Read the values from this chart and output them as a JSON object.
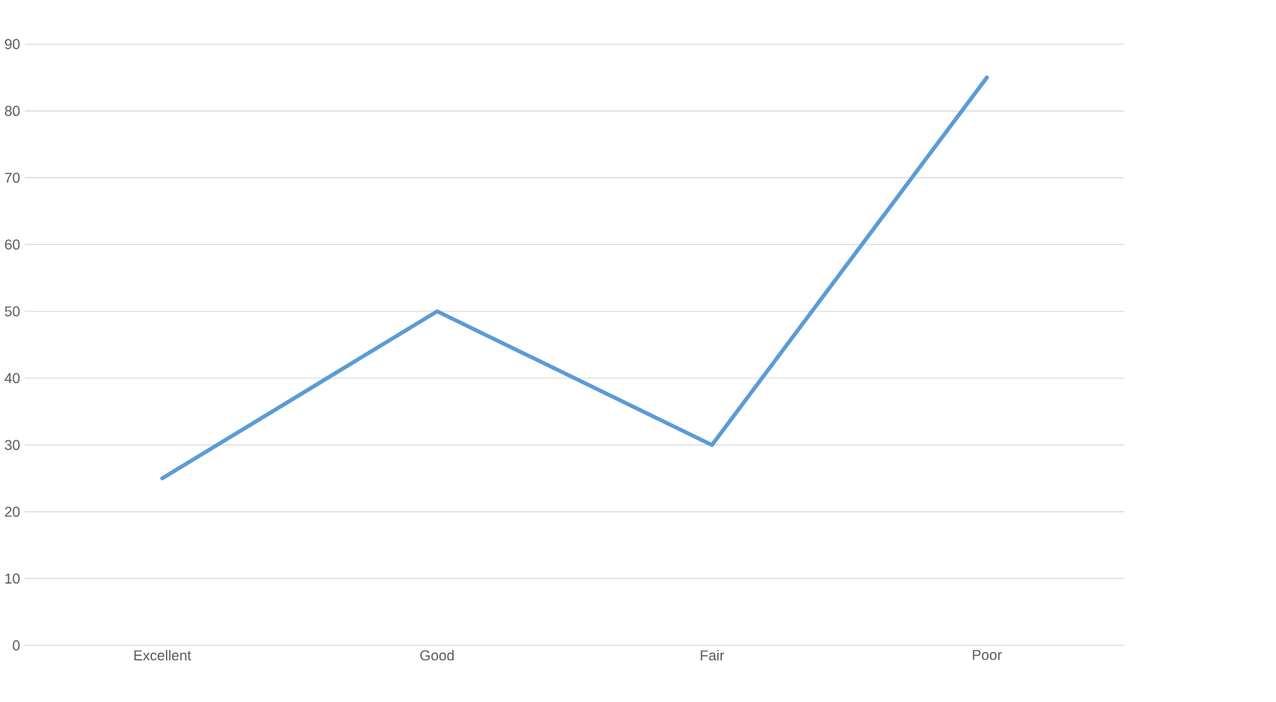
{
  "chart_data": {
    "type": "line",
    "categories": [
      "Excellent",
      "Good",
      "Fair",
      "Poor"
    ],
    "series": [
      {
        "color": "#5b9bd5",
        "values": [
          25,
          50,
          30,
          85
        ]
      }
    ],
    "ylim": [
      0,
      90
    ],
    "yticks": [
      0,
      10,
      20,
      30,
      40,
      50,
      60,
      70,
      80,
      90
    ],
    "grid": "y",
    "marker": "none",
    "line_style": "solid",
    "legend": false
  }
}
